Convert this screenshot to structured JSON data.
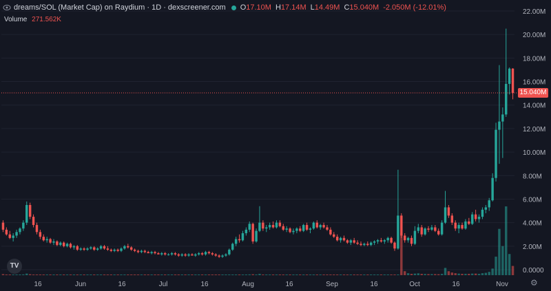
{
  "header": {
    "title": "dreams/SOL (Market Cap) on Raydium · 1D · dexscreener.com",
    "ohlc": [
      {
        "key": "O",
        "value": "17.10M"
      },
      {
        "key": "H",
        "value": "17.14M"
      },
      {
        "key": "L",
        "value": "14.49M"
      },
      {
        "key": "C",
        "value": "15.040M"
      }
    ],
    "change": "-2.050M (-12.01%)",
    "volume_label": "Volume",
    "volume_value": "271.562K"
  },
  "last_price_label": "15.040M",
  "colors": {
    "up": "#26a69a",
    "down": "#ef5350",
    "background": "#141722",
    "text": "#d1d4dc",
    "grid": "#1f2330"
  },
  "icons": {
    "logo": "tradingview-logo-icon",
    "settings": "gear-icon",
    "visibility": "eye-icon"
  },
  "logo_text": "TV",
  "settings_glyph": "⚙",
  "chart_data": {
    "type": "candlestick",
    "y_axis": {
      "min": 0,
      "max": 22,
      "unit": "M",
      "ticks": [
        "22.00M",
        "20.00M",
        "18.00M",
        "16.00M",
        "14.00M",
        "12.00M",
        "10.00M",
        "8.00M",
        "6.00M",
        "4.00M",
        "2.00M",
        "0.0000"
      ]
    },
    "x_axis": {
      "ticks": [
        "16",
        "Jun",
        "16",
        "Jul",
        "16",
        "Aug",
        "16",
        "Sep",
        "16",
        "Oct",
        "16",
        "Nov"
      ]
    },
    "last_close": 15.04,
    "candles": [
      [
        4.0,
        4.2,
        3.2,
        3.4
      ],
      [
        3.4,
        3.6,
        2.9,
        3.0
      ],
      [
        3.0,
        3.3,
        2.6,
        2.7
      ],
      [
        2.7,
        3.1,
        2.4,
        2.9
      ],
      [
        2.9,
        3.4,
        2.7,
        3.2
      ],
      [
        3.2,
        3.6,
        3.0,
        3.5
      ],
      [
        3.5,
        4.2,
        3.3,
        4.0
      ],
      [
        4.0,
        5.8,
        3.8,
        5.5
      ],
      [
        5.5,
        5.7,
        4.3,
        4.5
      ],
      [
        4.5,
        4.7,
        3.6,
        3.8
      ],
      [
        3.8,
        4.0,
        3.0,
        3.2
      ],
      [
        3.2,
        3.4,
        2.6,
        2.8
      ],
      [
        2.8,
        3.0,
        2.4,
        2.5
      ],
      [
        2.5,
        2.8,
        2.3,
        2.6
      ],
      [
        2.6,
        2.7,
        2.2,
        2.3
      ],
      [
        2.3,
        2.6,
        2.1,
        2.4
      ],
      [
        2.4,
        2.5,
        2.0,
        2.1
      ],
      [
        2.1,
        2.4,
        2.0,
        2.3
      ],
      [
        2.3,
        2.4,
        1.9,
        2.0
      ],
      [
        2.0,
        2.3,
        1.9,
        2.2
      ],
      [
        2.2,
        2.3,
        1.8,
        1.9
      ],
      [
        1.9,
        2.1,
        1.7,
        2.0
      ],
      [
        2.0,
        2.1,
        1.6,
        1.7
      ],
      [
        1.7,
        1.9,
        1.6,
        1.8
      ],
      [
        1.8,
        1.9,
        1.6,
        1.7
      ],
      [
        1.7,
        1.9,
        1.6,
        1.8
      ],
      [
        1.8,
        2.0,
        1.7,
        1.9
      ],
      [
        1.9,
        2.0,
        1.6,
        1.7
      ],
      [
        1.7,
        1.9,
        1.6,
        1.8
      ],
      [
        1.8,
        2.1,
        1.7,
        2.0
      ],
      [
        2.0,
        2.1,
        1.7,
        1.8
      ],
      [
        1.8,
        2.0,
        1.6,
        1.7
      ],
      [
        1.7,
        1.8,
        1.5,
        1.6
      ],
      [
        1.6,
        1.8,
        1.5,
        1.7
      ],
      [
        1.7,
        1.8,
        1.5,
        1.6
      ],
      [
        1.6,
        1.9,
        1.5,
        1.8
      ],
      [
        1.8,
        2.1,
        1.7,
        2.0
      ],
      [
        2.0,
        2.2,
        1.8,
        1.9
      ],
      [
        1.9,
        2.0,
        1.6,
        1.7
      ],
      [
        1.7,
        1.8,
        1.5,
        1.6
      ],
      [
        1.6,
        1.7,
        1.4,
        1.5
      ],
      [
        1.5,
        1.7,
        1.4,
        1.6
      ],
      [
        1.6,
        1.7,
        1.4,
        1.5
      ],
      [
        1.5,
        1.6,
        1.4,
        1.4
      ],
      [
        1.4,
        1.6,
        1.3,
        1.5
      ],
      [
        1.5,
        1.6,
        1.3,
        1.4
      ],
      [
        1.4,
        1.5,
        1.3,
        1.3
      ],
      [
        1.3,
        1.5,
        1.2,
        1.4
      ],
      [
        1.4,
        1.5,
        1.2,
        1.3
      ],
      [
        1.3,
        1.4,
        1.2,
        1.3
      ],
      [
        1.3,
        1.5,
        1.2,
        1.4
      ],
      [
        1.4,
        1.5,
        1.2,
        1.3
      ],
      [
        1.3,
        1.4,
        1.1,
        1.2
      ],
      [
        1.2,
        1.4,
        1.1,
        1.3
      ],
      [
        1.3,
        1.4,
        1.1,
        1.2
      ],
      [
        1.2,
        1.4,
        1.1,
        1.3
      ],
      [
        1.3,
        1.4,
        1.2,
        1.2
      ],
      [
        1.2,
        1.4,
        1.1,
        1.3
      ],
      [
        1.3,
        1.5,
        1.2,
        1.4
      ],
      [
        1.4,
        1.5,
        1.2,
        1.3
      ],
      [
        1.3,
        1.6,
        1.2,
        1.5
      ],
      [
        1.5,
        1.6,
        1.3,
        1.4
      ],
      [
        1.4,
        1.5,
        1.2,
        1.3
      ],
      [
        1.3,
        1.4,
        1.1,
        1.2
      ],
      [
        1.2,
        1.3,
        1.0,
        1.1
      ],
      [
        1.1,
        1.3,
        1.0,
        1.2
      ],
      [
        1.2,
        1.4,
        1.1,
        1.3
      ],
      [
        1.3,
        1.8,
        1.2,
        1.7
      ],
      [
        1.7,
        2.3,
        1.6,
        2.2
      ],
      [
        2.2,
        2.8,
        2.0,
        2.6
      ],
      [
        2.6,
        3.0,
        2.3,
        2.5
      ],
      [
        2.5,
        3.3,
        2.4,
        3.1
      ],
      [
        3.1,
        3.6,
        2.9,
        3.4
      ],
      [
        3.4,
        4.1,
        3.2,
        3.9
      ],
      [
        3.9,
        4.0,
        2.2,
        2.4
      ],
      [
        2.4,
        3.5,
        2.3,
        3.3
      ],
      [
        3.3,
        5.4,
        3.2,
        4.0
      ],
      [
        4.0,
        4.2,
        3.3,
        3.5
      ],
      [
        3.5,
        3.8,
        3.2,
        3.6
      ],
      [
        3.6,
        4.0,
        3.4,
        3.8
      ],
      [
        3.8,
        4.1,
        3.5,
        3.6
      ],
      [
        3.6,
        4.2,
        3.5,
        4.0
      ],
      [
        4.0,
        4.2,
        3.6,
        3.7
      ],
      [
        3.7,
        3.9,
        3.3,
        3.4
      ],
      [
        3.4,
        3.7,
        3.2,
        3.5
      ],
      [
        3.5,
        3.6,
        3.1,
        3.2
      ],
      [
        3.2,
        3.5,
        3.0,
        3.3
      ],
      [
        3.3,
        3.6,
        3.1,
        3.5
      ],
      [
        3.5,
        3.7,
        3.2,
        3.3
      ],
      [
        3.3,
        3.9,
        3.2,
        3.8
      ],
      [
        3.8,
        4.0,
        3.3,
        3.4
      ],
      [
        3.4,
        3.6,
        3.1,
        3.5
      ],
      [
        3.5,
        4.1,
        3.4,
        4.0
      ],
      [
        4.0,
        4.2,
        3.5,
        3.6
      ],
      [
        3.6,
        3.9,
        3.4,
        3.8
      ],
      [
        3.8,
        4.0,
        3.5,
        3.6
      ],
      [
        3.6,
        3.8,
        3.3,
        3.4
      ],
      [
        3.4,
        3.6,
        2.9,
        3.0
      ],
      [
        3.0,
        3.2,
        2.7,
        2.8
      ],
      [
        2.8,
        3.0,
        2.4,
        2.5
      ],
      [
        2.5,
        2.8,
        2.3,
        2.7
      ],
      [
        2.7,
        2.9,
        2.4,
        2.5
      ],
      [
        2.5,
        2.6,
        2.2,
        2.3
      ],
      [
        2.3,
        2.6,
        2.1,
        2.5
      ],
      [
        2.5,
        2.7,
        2.2,
        2.3
      ],
      [
        2.3,
        2.5,
        2.1,
        2.2
      ],
      [
        2.2,
        2.4,
        2.0,
        2.1
      ],
      [
        2.1,
        2.3,
        2.0,
        2.2
      ],
      [
        2.2,
        2.4,
        2.0,
        2.1
      ],
      [
        2.1,
        2.4,
        2.0,
        2.3
      ],
      [
        2.3,
        2.5,
        2.1,
        2.4
      ],
      [
        2.4,
        2.6,
        2.2,
        2.5
      ],
      [
        2.5,
        2.7,
        2.3,
        2.4
      ],
      [
        2.4,
        2.6,
        2.2,
        2.5
      ],
      [
        2.5,
        2.8,
        2.3,
        2.7
      ],
      [
        2.7,
        2.8,
        2.2,
        2.3
      ],
      [
        2.3,
        2.4,
        1.6,
        1.8
      ],
      [
        1.8,
        8.5,
        1.7,
        4.6
      ],
      [
        4.6,
        4.8,
        2.7,
        2.9
      ],
      [
        2.9,
        3.1,
        2.3,
        2.5
      ],
      [
        2.5,
        2.8,
        2.3,
        2.7
      ],
      [
        2.7,
        2.9,
        2.0,
        2.2
      ],
      [
        2.2,
        3.7,
        2.1,
        3.3
      ],
      [
        3.3,
        3.9,
        3.1,
        3.6
      ],
      [
        3.6,
        3.8,
        2.8,
        3.0
      ],
      [
        3.0,
        3.6,
        2.9,
        3.5
      ],
      [
        3.5,
        3.7,
        3.2,
        3.4
      ],
      [
        3.4,
        3.8,
        3.3,
        3.6
      ],
      [
        3.6,
        3.8,
        3.2,
        3.3
      ],
      [
        3.3,
        3.5,
        2.9,
        3.0
      ],
      [
        3.0,
        4.2,
        2.9,
        4.0
      ],
      [
        4.0,
        6.7,
        3.9,
        5.3
      ],
      [
        5.3,
        5.5,
        4.4,
        4.6
      ],
      [
        4.6,
        4.8,
        3.8,
        4.0
      ],
      [
        4.0,
        4.2,
        3.3,
        3.5
      ],
      [
        3.5,
        4.0,
        3.1,
        3.8
      ],
      [
        3.8,
        4.0,
        3.4,
        3.5
      ],
      [
        3.5,
        4.3,
        3.4,
        4.1
      ],
      [
        4.1,
        4.4,
        3.8,
        3.9
      ],
      [
        3.9,
        4.9,
        3.8,
        4.7
      ],
      [
        4.7,
        5.1,
        4.1,
        4.3
      ],
      [
        4.3,
        4.7,
        4.0,
        4.5
      ],
      [
        4.5,
        5.3,
        4.3,
        5.1
      ],
      [
        5.1,
        5.5,
        4.8,
        5.3
      ],
      [
        5.3,
        6.1,
        5.0,
        5.9
      ],
      [
        5.9,
        8.2,
        5.8,
        7.8
      ],
      [
        7.8,
        12.5,
        7.5,
        11.9
      ],
      [
        11.9,
        17.4,
        9.0,
        12.6
      ],
      [
        12.6,
        13.8,
        9.5,
        13.2
      ],
      [
        13.2,
        20.5,
        13.0,
        15.8
      ],
      [
        15.8,
        17.2,
        14.9,
        17.1
      ],
      [
        17.1,
        17.14,
        14.49,
        15.04
      ]
    ],
    "volumes": [
      0.08,
      0.05,
      0.04,
      0.03,
      0.04,
      0.05,
      0.06,
      0.12,
      0.07,
      0.05,
      0.04,
      0.03,
      0.03,
      0.02,
      0.02,
      0.02,
      0.02,
      0.02,
      0.02,
      0.02,
      0.02,
      0.02,
      0.02,
      0.02,
      0.02,
      0.02,
      0.02,
      0.02,
      0.02,
      0.02,
      0.02,
      0.02,
      0.02,
      0.02,
      0.02,
      0.02,
      0.02,
      0.02,
      0.02,
      0.02,
      0.02,
      0.02,
      0.02,
      0.02,
      0.02,
      0.02,
      0.02,
      0.02,
      0.02,
      0.02,
      0.02,
      0.02,
      0.02,
      0.02,
      0.02,
      0.02,
      0.02,
      0.02,
      0.02,
      0.02,
      0.02,
      0.02,
      0.02,
      0.02,
      0.02,
      0.02,
      0.02,
      0.03,
      0.04,
      0.04,
      0.03,
      0.04,
      0.05,
      0.06,
      0.07,
      0.05,
      0.1,
      0.05,
      0.04,
      0.04,
      0.04,
      0.04,
      0.04,
      0.03,
      0.03,
      0.03,
      0.03,
      0.03,
      0.03,
      0.04,
      0.03,
      0.03,
      0.04,
      0.03,
      0.03,
      0.03,
      0.03,
      0.03,
      0.03,
      0.03,
      0.03,
      0.03,
      0.03,
      0.03,
      0.03,
      0.03,
      0.03,
      0.03,
      0.03,
      0.03,
      0.03,
      0.03,
      0.03,
      0.03,
      0.03,
      0.03,
      0.03,
      0.05,
      3.2,
      0.3,
      0.15,
      0.1,
      0.12,
      0.14,
      0.1,
      0.09,
      0.08,
      0.08,
      0.08,
      0.07,
      0.1,
      0.55,
      0.3,
      0.2,
      0.15,
      0.12,
      0.1,
      0.1,
      0.1,
      0.12,
      0.12,
      0.1,
      0.15,
      0.18,
      0.25,
      0.5,
      1.4,
      3.5,
      2.2,
      5.2,
      1.6,
      0.7
    ]
  }
}
